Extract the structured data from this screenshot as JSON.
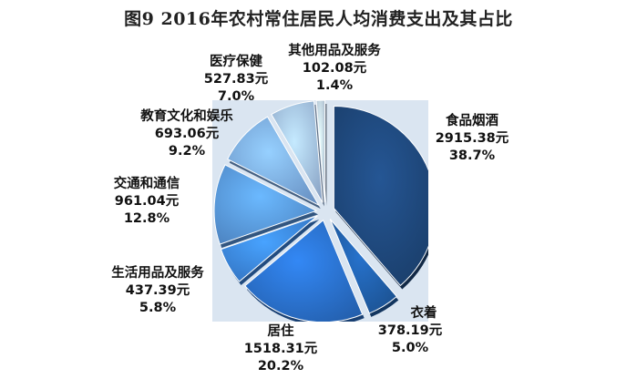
{
  "chart_data": {
    "type": "pie",
    "title": "图9  2016年农村常住居民人均消费支出及其占比",
    "slices": [
      {
        "label": "食品烟酒",
        "value": 2915.38,
        "value_text": "2915.38元",
        "percent": 38.7,
        "percent_text": "38.7%",
        "color": "#1f497d"
      },
      {
        "label": "衣着",
        "value": 378.19,
        "value_text": "378.19元",
        "percent": 5.0,
        "percent_text": "5.0%",
        "color": "#2161ad"
      },
      {
        "label": "居住",
        "value": 1518.31,
        "value_text": "1518.31元",
        "percent": 20.2,
        "percent_text": "20.2%",
        "color": "#2b73d0"
      },
      {
        "label": "生活用品及服务",
        "value": 437.39,
        "value_text": "437.39元",
        "percent": 5.8,
        "percent_text": "5.8%",
        "color": "#3d8ae8"
      },
      {
        "label": "交通和通信",
        "value": 961.04,
        "value_text": "961.04元",
        "percent": 12.8,
        "percent_text": "12.8%",
        "color": "#5b9de8"
      },
      {
        "label": "教育文化和娱乐",
        "value": 693.06,
        "value_text": "693.06元",
        "percent": 9.2,
        "percent_text": "9.2%",
        "color": "#7fb0ed"
      },
      {
        "label": "医疗保健",
        "value": 527.83,
        "value_text": "527.83元",
        "percent": 7.0,
        "percent_text": "7.0%",
        "color": "#a7c6ef"
      },
      {
        "label": "其他用品及服务",
        "value": 102.08,
        "value_text": "102.08元",
        "percent": 1.4,
        "percent_text": "1.4%",
        "color": "#c5d8f1"
      }
    ]
  }
}
